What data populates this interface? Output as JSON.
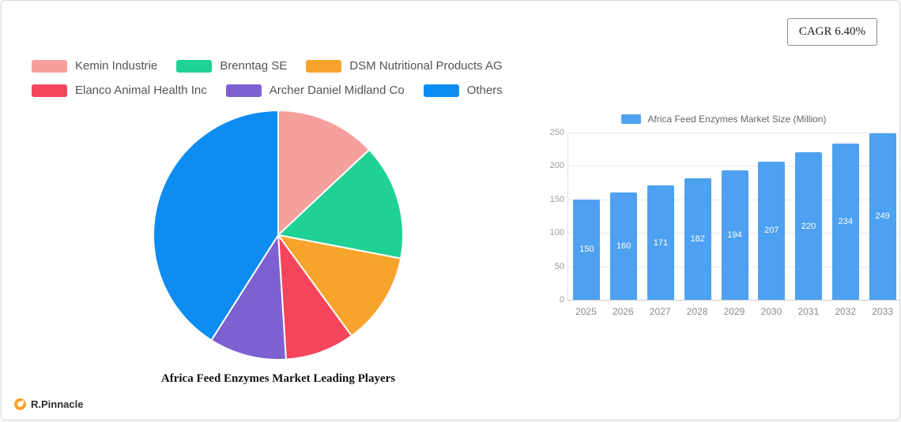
{
  "page": {
    "cagr_label": "CAGR 6.40%",
    "brand": "R.Pinnacle"
  },
  "chart_data": [
    {
      "type": "pie",
      "title": "Africa Feed Enzymes Market Leading Players",
      "legend_position": "top-left",
      "slices": [
        {
          "label": "Kemin Industrie",
          "value": 13,
          "color": "#F4A09C"
        },
        {
          "label": "Brenntag SE",
          "value": 15,
          "color": "#1FD195"
        },
        {
          "label": "DSM Nutritional Products AG",
          "value": 12,
          "color": "#F6A42D"
        },
        {
          "label": "Elanco Animal Health Inc",
          "value": 9,
          "color": "#F5455C"
        },
        {
          "label": "Archer Daniel Midland Co",
          "value": 10,
          "color": "#7D61D1"
        },
        {
          "label": "Others",
          "value": 41,
          "color": "#0D8DF2"
        }
      ]
    },
    {
      "type": "bar",
      "series_label": "Africa Feed Enzymes Market Size (Million)",
      "categories": [
        "2025",
        "2026",
        "2027",
        "2028",
        "2029",
        "2030",
        "2031",
        "2032",
        "2033"
      ],
      "values": [
        150,
        160,
        171,
        182,
        194,
        207,
        220,
        234,
        249
      ],
      "bar_color": "#4DA1F0",
      "ylim": [
        0,
        250
      ],
      "yticks": [
        0,
        50,
        100,
        150,
        200,
        250
      ],
      "grid": true,
      "legend_position": "top"
    }
  ]
}
